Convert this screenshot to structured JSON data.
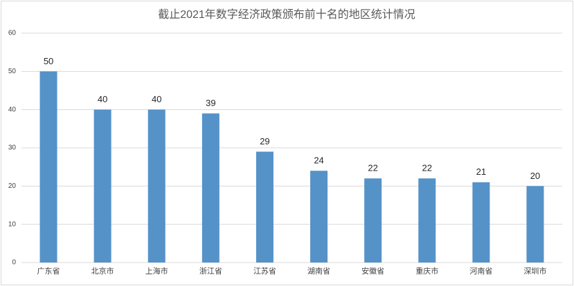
{
  "chart_data": {
    "type": "bar",
    "title": "截止2021年数字经济政策颁布前十名的地区统计情况",
    "categories": [
      "广东省",
      "北京市",
      "上海市",
      "浙江省",
      "江苏省",
      "湖南省",
      "安徽省",
      "重庆市",
      "河南省",
      "深圳市"
    ],
    "values": [
      50,
      40,
      40,
      39,
      29,
      24,
      22,
      22,
      21,
      20
    ],
    "color": "#5592c8",
    "ylim": [
      0,
      60
    ],
    "yticks": [
      0,
      10,
      20,
      30,
      40,
      50,
      60
    ],
    "grid": true
  }
}
